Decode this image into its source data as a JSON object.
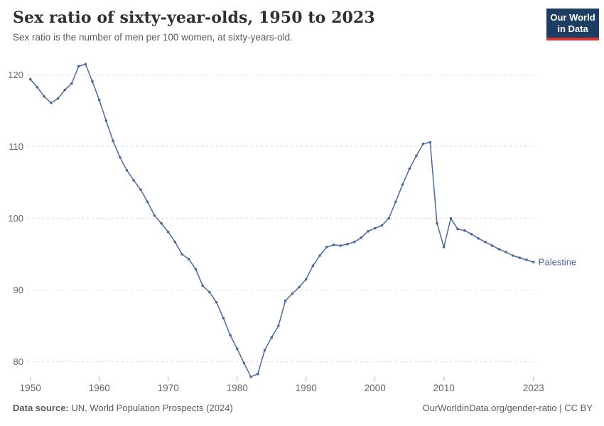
{
  "header": {
    "title": "Sex ratio of sixty-year-olds, 1950 to 2023",
    "subtitle": "Sex ratio is the number of men per 100 women, at sixty-years-old."
  },
  "logo": {
    "line1": "Our World",
    "line2": "in Data",
    "bg_color": "#1d3d63",
    "accent_color": "#d7382f"
  },
  "footer": {
    "source_label": "Data source:",
    "source_text": " UN, World Population Prospects (2024)",
    "link_text": "OurWorldinData.org/gender-ratio",
    "license_text": " | CC BY"
  },
  "chart_data": {
    "type": "line",
    "title": "Sex ratio of sixty-year-olds, 1950 to 2023",
    "xlabel": "",
    "ylabel": "",
    "grid": "dashed-horizontal",
    "legend_position": "end-of-line-label",
    "xlim": [
      1950,
      2023
    ],
    "x_ticks": [
      1950,
      1960,
      1970,
      1980,
      1990,
      2000,
      2010,
      2023
    ],
    "y_ticks": [
      80,
      90,
      100,
      110,
      120
    ],
    "colors": {
      "line": "#4a699e",
      "grid": "#dcdcdc",
      "tick_mark": "#b3b3b3",
      "tick_label": "#666666"
    },
    "series": [
      {
        "name": "Palestine",
        "color": "#4a699e",
        "x": [
          1950,
          1951,
          1952,
          1953,
          1954,
          1955,
          1956,
          1957,
          1958,
          1959,
          1960,
          1961,
          1962,
          1963,
          1964,
          1965,
          1966,
          1967,
          1968,
          1969,
          1970,
          1971,
          1972,
          1973,
          1974,
          1975,
          1976,
          1977,
          1978,
          1979,
          1980,
          1981,
          1982,
          1983,
          1984,
          1985,
          1986,
          1987,
          1988,
          1989,
          1990,
          1991,
          1992,
          1993,
          1994,
          1995,
          1996,
          1997,
          1998,
          1999,
          2000,
          2001,
          2002,
          2003,
          2004,
          2005,
          2006,
          2007,
          2008,
          2009,
          2010,
          2011,
          2012,
          2013,
          2014,
          2015,
          2016,
          2017,
          2018,
          2019,
          2020,
          2021,
          2022,
          2023
        ],
        "values": [
          119.4,
          118.3,
          117.0,
          116.1,
          116.7,
          117.9,
          118.8,
          121.2,
          121.5,
          119.1,
          116.5,
          113.6,
          110.8,
          108.5,
          106.7,
          105.3,
          104.0,
          102.3,
          100.4,
          99.3,
          98.1,
          96.7,
          95.0,
          94.3,
          92.9,
          90.6,
          89.7,
          88.3,
          86.1,
          83.7,
          81.8,
          79.8,
          77.9,
          78.3,
          81.6,
          83.4,
          85.0,
          88.5,
          89.5,
          90.4,
          91.5,
          93.4,
          94.8,
          96.0,
          96.3,
          96.2,
          96.4,
          96.7,
          97.3,
          98.2,
          98.6,
          99.0,
          100.0,
          102.3,
          104.7,
          106.9,
          108.7,
          110.4,
          110.6,
          99.3,
          96.0,
          100.0,
          98.5,
          98.3,
          97.8,
          97.2,
          96.7,
          96.2,
          95.7,
          95.3,
          94.8,
          94.5,
          94.2,
          93.9
        ]
      }
    ]
  }
}
